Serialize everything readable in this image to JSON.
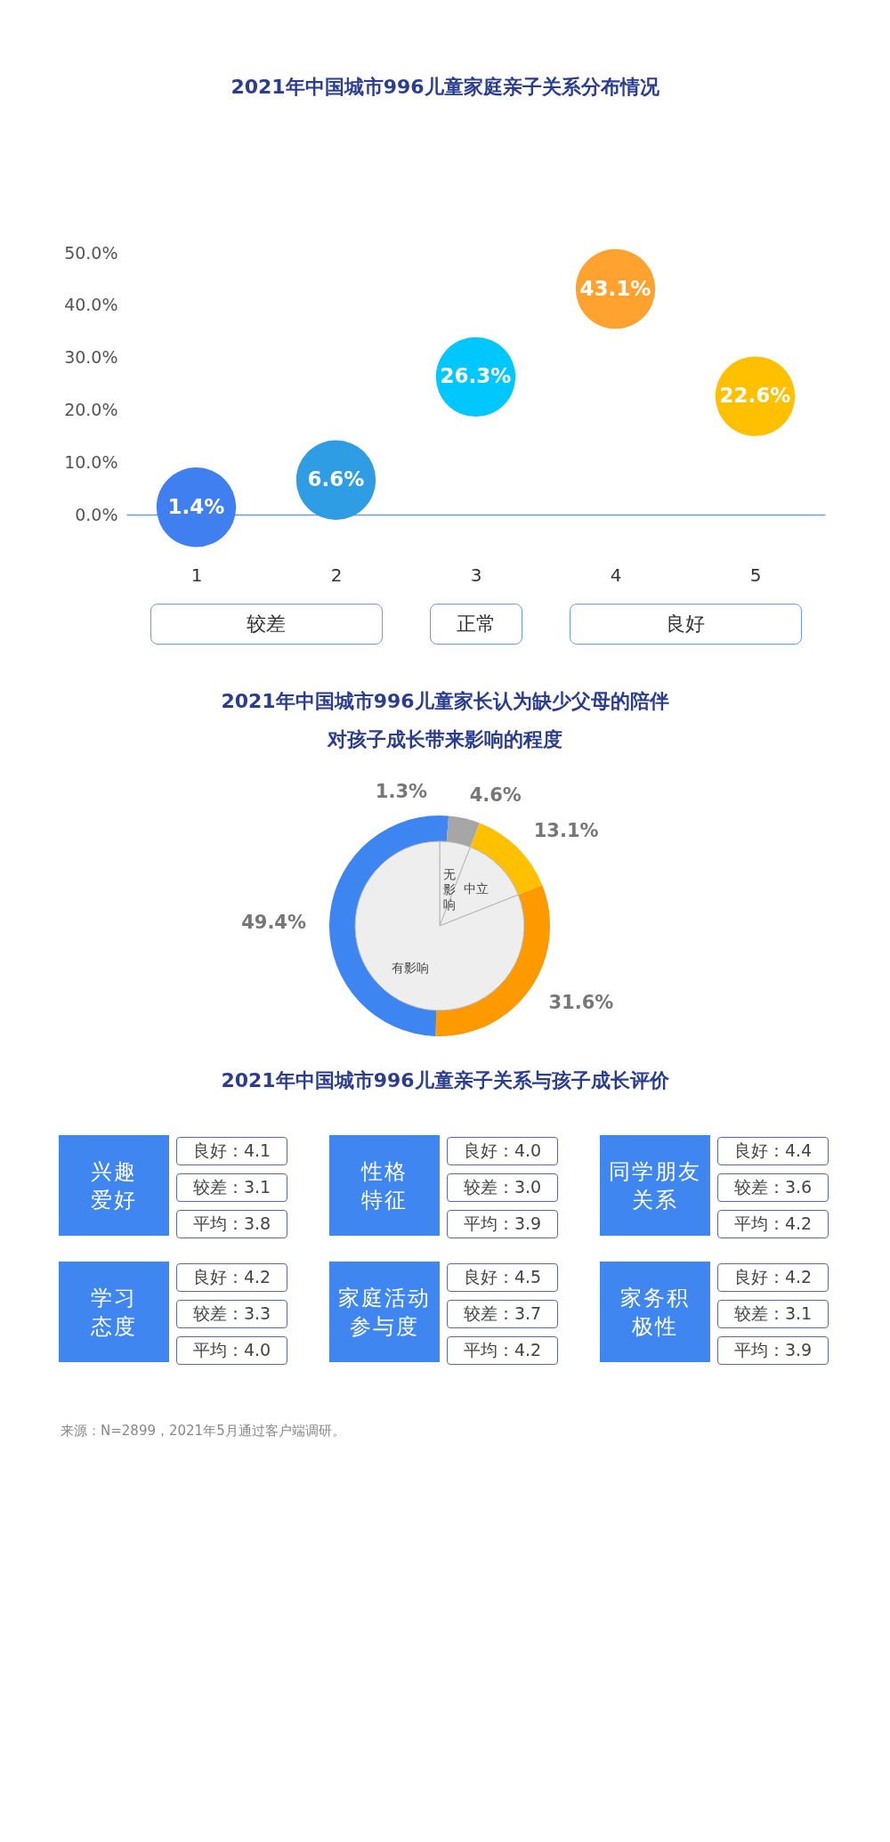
{
  "chart_data": [
    {
      "type": "scatter",
      "title": "2021年中国城市996儿童家庭亲子关系分布情况",
      "categories": [
        "1",
        "2",
        "3",
        "4",
        "5"
      ],
      "values": [
        1.4,
        6.6,
        26.3,
        43.1,
        22.6
      ],
      "colors": [
        "#3f7ff0",
        "#2f9de4",
        "#00c8ff",
        "#ffa230",
        "#ffc000"
      ],
      "value_labels": [
        "1.4%",
        "6.6%",
        "26.3%",
        "43.1%",
        "22.6%"
      ],
      "marker": "circle",
      "ylim": [
        0,
        50
      ],
      "yticks": [
        {
          "value": 0,
          "label": "0.0%"
        },
        {
          "value": 10,
          "label": "10.0%"
        },
        {
          "value": 20,
          "label": "20.0%"
        },
        {
          "value": 30,
          "label": "30.0%"
        },
        {
          "value": 40,
          "label": "40.0%"
        },
        {
          "value": 50,
          "label": "50.0%"
        }
      ],
      "annotations": [
        "较差",
        "正常",
        "良好"
      ]
    },
    {
      "type": "donut",
      "title": "2021年中国城市996儿童家长认为缺少父母的陪伴对孩子成长带来影响的程度",
      "categories": [
        null,
        null,
        null,
        null,
        null
      ],
      "values": [
        1.3,
        4.6,
        13.1,
        31.6,
        49.4
      ],
      "colors": [
        "#3f86f0",
        "#a6a6a6",
        "#ffc000",
        "#ff9900",
        "#3d85f0"
      ],
      "value_labels": [
        "1.3%",
        "4.6%",
        "13.1%",
        "31.6%",
        "49.4%"
      ]
    },
    {
      "type": "pie",
      "categories": [
        "无影响",
        "中立",
        "有影响"
      ],
      "values": [
        5.9,
        13.1,
        81.0
      ],
      "colors": [
        "#eeeeee",
        "#eeeeee",
        "#eeeeee"
      ]
    },
    {
      "type": "other",
      "title": "2021年中国城市996儿童亲子关系与孩子成长评价",
      "categories": [
        "兴趣爱好",
        "性格特征",
        "同学朋友关系",
        "学习态度",
        "家庭活动参与度",
        "家务积极性"
      ],
      "annotations": [
        "良好：4.1",
        "较差：3.1",
        "平均：3.8",
        "良好：4.0",
        "较差：3.0",
        "平均：3.9",
        "良好：4.4",
        "较差：3.6",
        "平均：4.2",
        "良好：4.2",
        "较差：3.3",
        "平均：4.0",
        "良好：4.5",
        "较差：3.7",
        "平均：4.2",
        "良好：4.2",
        "较差：3.1",
        "平均：3.9",
        "来源：N=2899，2021年5月通过客户端调研。"
      ]
    }
  ]
}
